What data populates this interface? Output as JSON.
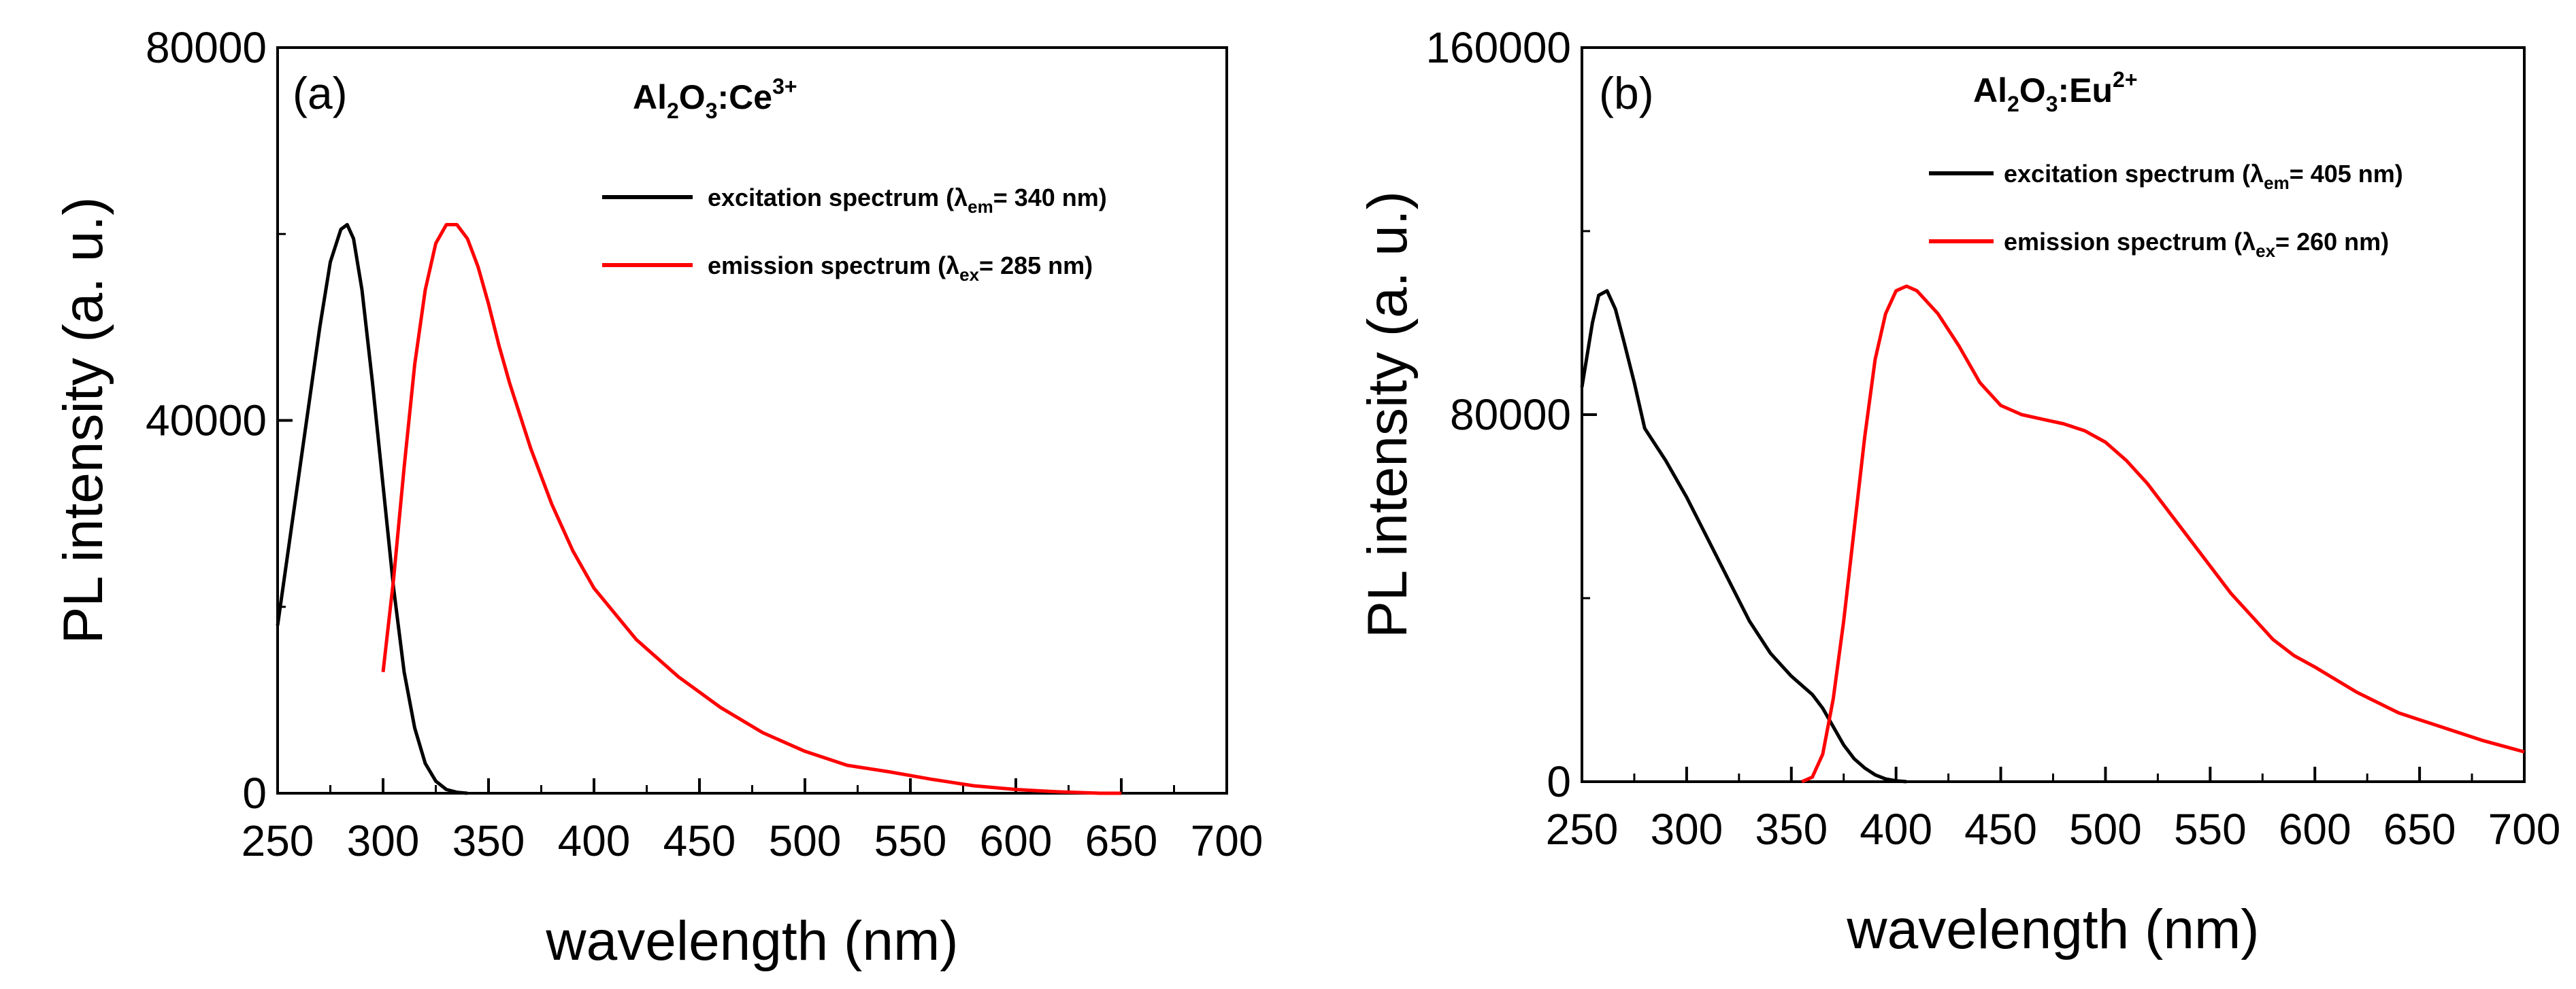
{
  "chart_data": [
    {
      "type": "line",
      "panel_label": "(a)",
      "title_parts": [
        "Al",
        "2",
        "O",
        "3",
        ":Ce",
        "3+"
      ],
      "xlabel": "wavelength (nm)",
      "ylabel": "PL intensity (a. u.)",
      "xlim": [
        250,
        700
      ],
      "ylim": [
        0,
        80000
      ],
      "xticks": [
        "250",
        "300",
        "350",
        "400",
        "450",
        "500",
        "550",
        "600",
        "650",
        "700"
      ],
      "yticks": [
        "0",
        "40000",
        "80000"
      ],
      "series": [
        {
          "name": "excitation spectrum",
          "legend": {
            "prefix": "excitation spectrum  (λ",
            "sub": "em",
            "suffix": "= 340 nm)"
          },
          "color": "#000000",
          "x": [
            250,
            255,
            260,
            265,
            270,
            275,
            280,
            283,
            286,
            290,
            295,
            300,
            305,
            310,
            315,
            320,
            325,
            330,
            335,
            340
          ],
          "y": [
            18000,
            26000,
            34000,
            42000,
            50000,
            57000,
            60500,
            61000,
            59500,
            54000,
            44000,
            33000,
            22000,
            13000,
            7000,
            3200,
            1300,
            400,
            100,
            0
          ]
        },
        {
          "name": "emission spectrum",
          "legend": {
            "prefix": "emission spectrum  (λ",
            "sub": "ex",
            "suffix": "= 285 nm)"
          },
          "color": "#ff0000",
          "x": [
            300,
            305,
            310,
            315,
            320,
            325,
            330,
            335,
            340,
            345,
            350,
            355,
            360,
            370,
            380,
            390,
            400,
            420,
            440,
            460,
            480,
            500,
            520,
            540,
            560,
            580,
            600,
            620,
            640,
            650
          ],
          "y": [
            13000,
            23000,
            35000,
            46000,
            54000,
            59000,
            61000,
            61000,
            59500,
            56500,
            52500,
            48000,
            44000,
            37000,
            31000,
            26000,
            22000,
            16500,
            12500,
            9200,
            6500,
            4500,
            3000,
            2300,
            1500,
            800,
            400,
            150,
            0,
            0
          ]
        }
      ]
    },
    {
      "type": "line",
      "panel_label": "(b)",
      "title_parts": [
        "Al",
        "2",
        "O",
        "3",
        ":Eu",
        "2+"
      ],
      "xlabel": "wavelength (nm)",
      "ylabel": "PL intensity (a. u.)",
      "xlim": [
        250,
        700
      ],
      "ylim": [
        0,
        160000
      ],
      "xticks": [
        "250",
        "300",
        "350",
        "400",
        "450",
        "500",
        "550",
        "600",
        "650",
        "700"
      ],
      "yticks": [
        "0",
        "80000",
        "160000"
      ],
      "series": [
        {
          "name": "excitation spectrum",
          "legend": {
            "prefix": "excitation spectrum  (λ",
            "sub": "em",
            "suffix": "= 405 nm)"
          },
          "color": "#000000",
          "x": [
            250,
            255,
            258,
            262,
            266,
            270,
            275,
            280,
            290,
            300,
            310,
            320,
            330,
            340,
            350,
            360,
            365,
            370,
            375,
            380,
            385,
            390,
            395,
            400,
            405
          ],
          "y": [
            86000,
            100000,
            106000,
            107000,
            103000,
            96000,
            87000,
            77000,
            70000,
            62000,
            53000,
            44000,
            35000,
            28000,
            23000,
            19000,
            16000,
            12000,
            8000,
            5000,
            3000,
            1500,
            600,
            200,
            0
          ]
        },
        {
          "name": "emission spectrum",
          "legend": {
            "prefix": "emission spectrum  (λ",
            "sub": "ex",
            "suffix": "= 260 nm)"
          },
          "color": "#ff0000",
          "x": [
            355,
            360,
            365,
            370,
            375,
            380,
            385,
            390,
            395,
            400,
            405,
            410,
            420,
            430,
            440,
            450,
            460,
            470,
            480,
            490,
            500,
            510,
            520,
            530,
            540,
            550,
            560,
            570,
            580,
            590,
            600,
            620,
            640,
            660,
            680,
            700
          ],
          "y": [
            0,
            1000,
            6000,
            18000,
            35000,
            55000,
            75000,
            92000,
            102000,
            107000,
            108000,
            107000,
            102000,
            95000,
            87000,
            82000,
            80000,
            79000,
            78000,
            76500,
            74000,
            70000,
            65000,
            59000,
            53000,
            47000,
            41000,
            36000,
            31000,
            27500,
            25000,
            19500,
            15000,
            12000,
            9000,
            6500
          ]
        }
      ]
    }
  ]
}
